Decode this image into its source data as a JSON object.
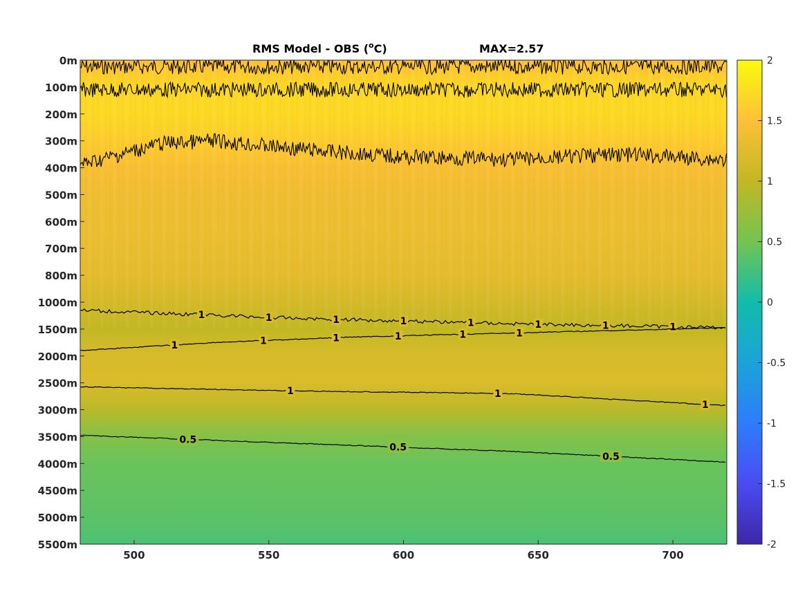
{
  "chart_data": {
    "type": "heatmap",
    "title": "RMS Model - OBS (°C)",
    "title_main": "RMS Model - OBS (",
    "title_sup": "o",
    "title_end": "C)",
    "max_label": "MAX=2.57",
    "xlabel": "",
    "ylabel": "",
    "xlim": [
      480,
      720
    ],
    "x_ticks": [
      500,
      550,
      600,
      650,
      700
    ],
    "x_tick_labels": [
      "500",
      "550",
      "600",
      "650",
      "700"
    ],
    "y_tick_labels": [
      "0m",
      "100m",
      "200m",
      "300m",
      "400m",
      "500m",
      "600m",
      "700m",
      "800m",
      "1000m",
      "1500m",
      "2000m",
      "2500m",
      "3000m",
      "3500m",
      "4000m",
      "4500m",
      "5000m",
      "5500m"
    ],
    "colorbar": {
      "range": [
        -2,
        2
      ],
      "colormap": "parula",
      "ticks": [
        2,
        1.5,
        1,
        0.5,
        0,
        -0.5,
        -1,
        -1.5,
        -2
      ],
      "tick_labels": [
        "2",
        "1.5",
        "1",
        "0.5",
        "0",
        "-0.5",
        "-1",
        "-1.5",
        "-2"
      ]
    },
    "depth_profile": [
      {
        "depth_index": 0,
        "value": 1.5
      },
      {
        "depth_index": 1,
        "value": 1.7
      },
      {
        "depth_index": 2,
        "value": 1.72
      },
      {
        "depth_index": 3,
        "value": 1.6
      },
      {
        "depth_index": 4,
        "value": 1.45
      },
      {
        "depth_index": 5,
        "value": 1.38
      },
      {
        "depth_index": 6,
        "value": 1.36
      },
      {
        "depth_index": 7,
        "value": 1.33
      },
      {
        "depth_index": 8,
        "value": 1.28
      },
      {
        "depth_index": 9,
        "value": 1.15
      },
      {
        "depth_index": 10,
        "value": 1.0
      },
      {
        "depth_index": 11,
        "value": 1.18
      },
      {
        "depth_index": 12,
        "value": 1.2
      },
      {
        "depth_index": 13,
        "value": 0.95
      },
      {
        "depth_index": 14,
        "value": 0.6
      },
      {
        "depth_index": 15,
        "value": 0.45
      },
      {
        "depth_index": 16,
        "value": 0.42
      },
      {
        "depth_index": 17,
        "value": 0.38
      },
      {
        "depth_index": 18,
        "value": 0.3
      }
    ],
    "contours": [
      {
        "level": 1,
        "label": "1",
        "label_x": [],
        "points": [
          [
            480,
            0.25
          ],
          [
            720,
            0.25
          ]
        ],
        "noisy": true
      },
      {
        "level": 1,
        "label": "1",
        "label_x": [],
        "points": [
          [
            480,
            1.1
          ],
          [
            720,
            1.1
          ]
        ],
        "noisy": true
      },
      {
        "level": 1,
        "label": "1",
        "label_x": [],
        "points": [
          [
            480,
            3.9
          ],
          [
            510,
            3.1
          ],
          [
            530,
            3.0
          ],
          [
            560,
            3.3
          ],
          [
            600,
            3.6
          ],
          [
            640,
            3.7
          ],
          [
            680,
            3.5
          ],
          [
            720,
            3.7
          ]
        ],
        "noisy": true
      },
      {
        "level": 1,
        "label": "1",
        "label_x": [
          525,
          550,
          575,
          600,
          625,
          650,
          675,
          700
        ],
        "points": [
          [
            480,
            9.3
          ],
          [
            560,
            9.6
          ],
          [
            640,
            9.8
          ],
          [
            720,
            9.95
          ]
        ],
        "noisy": false
      },
      {
        "level": 1,
        "label": "1",
        "label_x": [
          515,
          548,
          575,
          598,
          622,
          643
        ],
        "points": [
          [
            480,
            10.8
          ],
          [
            530,
            10.5
          ],
          [
            580,
            10.3
          ],
          [
            640,
            10.15
          ],
          [
            720,
            9.95
          ]
        ],
        "noisy": false
      },
      {
        "level": 1,
        "label": "1",
        "label_x": [
          558,
          635,
          712
        ],
        "points": [
          [
            480,
            12.15
          ],
          [
            560,
            12.3
          ],
          [
            640,
            12.4
          ],
          [
            720,
            12.85
          ]
        ],
        "noisy": false
      },
      {
        "level": 0.5,
        "label": "0.5",
        "label_x": [
          520,
          598,
          677
        ],
        "points": [
          [
            480,
            13.95
          ],
          [
            560,
            14.25
          ],
          [
            640,
            14.55
          ],
          [
            720,
            14.95
          ]
        ],
        "noisy": false
      }
    ]
  }
}
